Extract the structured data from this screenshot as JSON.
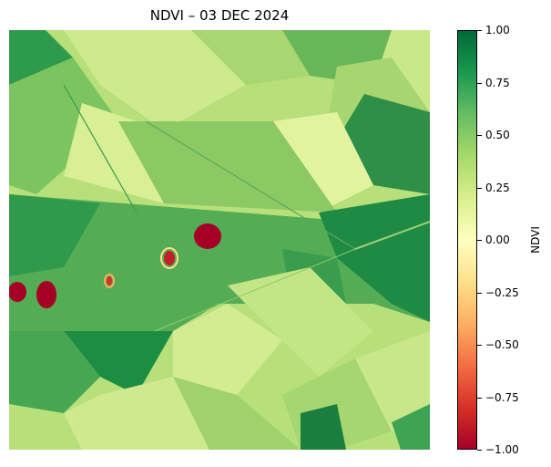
{
  "title": "NDVI – 03 DEC 2024",
  "colorbar": {
    "label": "NDVI",
    "colormap": "RdYlGn",
    "range": [
      -1.0,
      1.0
    ],
    "ticks": [
      "1.00",
      "0.75",
      "0.50",
      "0.25",
      "0.00",
      "−0.25",
      "−0.50",
      "−0.75",
      "−1.00"
    ],
    "tick_values": [
      1.0,
      0.75,
      0.5,
      0.25,
      0.0,
      -0.25,
      -0.5,
      -0.75,
      -1.0
    ],
    "colors": [
      "#a50026",
      "#d73027",
      "#f46d43",
      "#fdae61",
      "#fee08b",
      "#ffffbf",
      "#d9ef8b",
      "#a6d96a",
      "#66bd63",
      "#1a9850",
      "#006837"
    ]
  }
}
